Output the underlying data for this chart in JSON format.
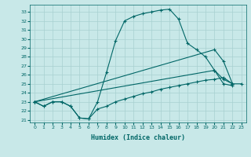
{
  "bg_color": "#c8e8e8",
  "line_color": "#006666",
  "grid_color": "#a8d0d0",
  "xlabel": "Humidex (Indice chaleur)",
  "xlim": [
    -0.5,
    23.5
  ],
  "ylim": [
    20.7,
    33.8
  ],
  "yticks": [
    21,
    22,
    23,
    24,
    25,
    26,
    27,
    28,
    29,
    30,
    31,
    32,
    33
  ],
  "xticks": [
    0,
    1,
    2,
    3,
    4,
    5,
    6,
    7,
    8,
    9,
    10,
    11,
    12,
    13,
    14,
    15,
    16,
    17,
    18,
    19,
    20,
    21,
    22,
    23
  ],
  "curve1_x": [
    0,
    1,
    2,
    3,
    4,
    5,
    6,
    7,
    8,
    9,
    10,
    11,
    12,
    13,
    14,
    15,
    16,
    17,
    18,
    19,
    20,
    21,
    22
  ],
  "curve1_y": [
    23.0,
    22.5,
    23.0,
    23.0,
    22.5,
    21.2,
    21.1,
    23.0,
    26.3,
    29.8,
    32.0,
    32.5,
    32.8,
    33.0,
    33.2,
    33.3,
    32.2,
    29.5,
    28.8,
    28.0,
    26.5,
    25.0,
    24.8
  ],
  "curve2_x": [
    0,
    1,
    2,
    3,
    4,
    5,
    6,
    7,
    8,
    9,
    10,
    11,
    12,
    13,
    14,
    15,
    16,
    17,
    18,
    19,
    20,
    21,
    22,
    23
  ],
  "curve2_y": [
    23.0,
    22.5,
    23.0,
    23.0,
    22.5,
    21.2,
    21.1,
    22.2,
    22.5,
    23.0,
    23.3,
    23.6,
    23.9,
    24.1,
    24.4,
    24.6,
    24.8,
    25.0,
    25.2,
    25.4,
    25.5,
    25.7,
    25.0,
    25.0
  ],
  "line3_x": [
    0,
    20,
    21,
    22
  ],
  "line3_y": [
    23.0,
    28.8,
    27.5,
    25.0
  ],
  "line4_x": [
    0,
    20,
    21,
    22
  ],
  "line4_y": [
    23.0,
    26.5,
    25.5,
    25.0
  ]
}
